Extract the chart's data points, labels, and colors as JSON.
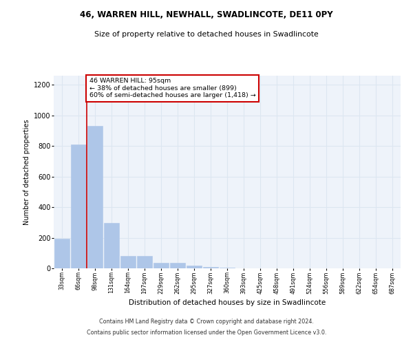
{
  "title_line1": "46, WARREN HILL, NEWHALL, SWADLINCOTE, DE11 0PY",
  "title_line2": "Size of property relative to detached houses in Swadlincote",
  "xlabel": "Distribution of detached houses by size in Swadlincote",
  "ylabel": "Number of detached properties",
  "categories": [
    "33sqm",
    "66sqm",
    "98sqm",
    "131sqm",
    "164sqm",
    "197sqm",
    "229sqm",
    "262sqm",
    "295sqm",
    "327sqm",
    "360sqm",
    "393sqm",
    "425sqm",
    "458sqm",
    "491sqm",
    "524sqm",
    "556sqm",
    "589sqm",
    "622sqm",
    "654sqm",
    "687sqm"
  ],
  "values": [
    195,
    810,
    930,
    295,
    80,
    80,
    38,
    35,
    18,
    8,
    3,
    0,
    0,
    0,
    0,
    0,
    0,
    0,
    0,
    0,
    0
  ],
  "bar_color": "#aec6e8",
  "bar_edge_color": "#aec6e8",
  "vline_color": "#cc0000",
  "annotation_text": "46 WARREN HILL: 95sqm\n← 38% of detached houses are smaller (899)\n60% of semi-detached houses are larger (1,418) →",
  "annotation_box_color": "#ffffff",
  "annotation_box_edge": "#cc0000",
  "ylim": [
    0,
    1260
  ],
  "yticks": [
    0,
    200,
    400,
    600,
    800,
    1000,
    1200
  ],
  "grid_color": "#dce6f1",
  "background_color": "#eef3fa",
  "footer_line1": "Contains HM Land Registry data © Crown copyright and database right 2024.",
  "footer_line2": "Contains public sector information licensed under the Open Government Licence v3.0."
}
